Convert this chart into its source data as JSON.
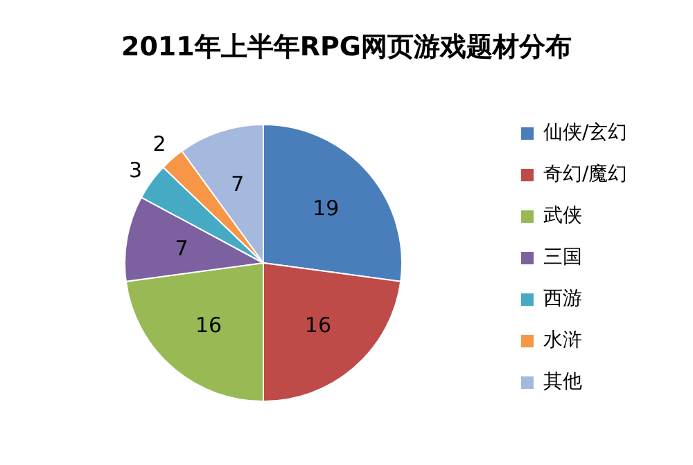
{
  "chart_data": {
    "type": "pie",
    "title": "2011年上半年RPG网页游戏题材分布",
    "categories": [
      "仙侠/玄幻",
      "奇幻/魔幻",
      "武侠",
      "三国",
      "西游",
      "水浒",
      "其他"
    ],
    "values": [
      19,
      16,
      16,
      7,
      3,
      2,
      7
    ],
    "colors": [
      "#4a7ebb",
      "#be4b48",
      "#98b954",
      "#7d60a0",
      "#46aac5",
      "#f79646",
      "#a5b8dd"
    ],
    "data_labels": true,
    "legend": "right"
  }
}
